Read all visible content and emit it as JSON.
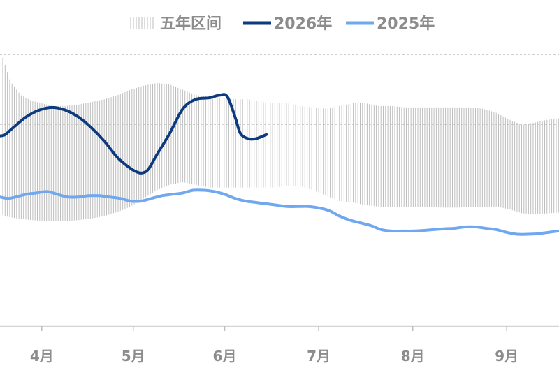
{
  "chart_data": {
    "type": "line",
    "legend_position": "top",
    "legend": [
      {
        "label": "五年区间",
        "kind": "band",
        "color": "#b8b8b8"
      },
      {
        "label": "2026年",
        "kind": "line",
        "color": "#0b3a7e"
      },
      {
        "label": "2025年",
        "kind": "line",
        "color": "#6fa8f0"
      }
    ],
    "x_axis": {
      "ticks": [
        "4月",
        "5月",
        "6月",
        "7月",
        "8月",
        "9月"
      ],
      "tick_day": [
        26,
        61,
        96,
        132,
        168,
        204
      ],
      "range_day": [
        10,
        224
      ]
    },
    "y_axis": {
      "range": [
        0,
        100
      ],
      "gridlines": [
        0,
        35,
        100
      ],
      "visible_labels": false
    },
    "band": {
      "name": "五年区间",
      "x": [
        10,
        11,
        12,
        14,
        18,
        22,
        26,
        30,
        35,
        40,
        45,
        50,
        55,
        60,
        65,
        70,
        75,
        80,
        85,
        90,
        95,
        100,
        105,
        110,
        115,
        120,
        125,
        130,
        135,
        140,
        145,
        150,
        155,
        160,
        165,
        170,
        175,
        180,
        185,
        190,
        195,
        200,
        205,
        210,
        215,
        220,
        224
      ],
      "low": [
        42,
        41,
        40.5,
        40,
        39.5,
        39,
        38.8,
        38.6,
        38.6,
        39,
        39.6,
        40.5,
        42,
        44,
        47,
        50,
        52,
        53,
        52,
        51,
        51,
        51,
        51,
        51,
        51,
        51.5,
        51.5,
        50,
        48,
        46,
        45.5,
        44.5,
        44,
        43.8,
        43.8,
        43.8,
        43.8,
        43.6,
        43.6,
        43.8,
        43.9,
        44,
        43,
        41.5,
        41.2,
        41.5,
        41.8
      ],
      "high": [
        100,
        99,
        96,
        90,
        85,
        83,
        82,
        81,
        81,
        81.5,
        82.5,
        83.5,
        85,
        87,
        88.5,
        89.5,
        89,
        87,
        85,
        84.5,
        84,
        83.5,
        83.5,
        82.5,
        82,
        82,
        81,
        80.5,
        80,
        81,
        82,
        82,
        81,
        81,
        80.5,
        80.5,
        80.5,
        80.5,
        80.5,
        80.5,
        80,
        78.5,
        76,
        74,
        75,
        76,
        76.5
      ]
    },
    "series": [
      {
        "name": "2026年",
        "x": [
          10,
          12,
          15,
          20,
          25,
          30,
          35,
          40,
          45,
          50,
          55,
          60,
          63,
          65,
          67,
          70,
          75,
          80,
          85,
          90,
          94,
          97,
          100,
          102,
          105,
          108,
          112
        ],
        "y": [
          70,
          70.5,
          73,
          77,
          79.5,
          80.5,
          79.5,
          77,
          73,
          68,
          62,
          58,
          56.5,
          56.5,
          58,
          63,
          71,
          80,
          83.5,
          84,
          85,
          84.5,
          77,
          71,
          69,
          69,
          70.5
        ]
      },
      {
        "name": "2025年",
        "x": [
          10,
          13,
          16,
          20,
          24,
          28,
          32,
          36,
          40,
          44,
          48,
          52,
          56,
          60,
          64,
          68,
          72,
          76,
          80,
          84,
          88,
          92,
          96,
          100,
          104,
          108,
          112,
          116,
          120,
          124,
          128,
          132,
          136,
          140,
          144,
          148,
          152,
          156,
          160,
          164,
          168,
          172,
          176,
          180,
          184,
          188,
          192,
          196,
          200,
          204,
          208,
          212,
          216,
          220,
          224
        ],
        "y": [
          47.5,
          47,
          47.5,
          48.5,
          49,
          49.5,
          48.5,
          47.5,
          47.5,
          48,
          48,
          47.5,
          47,
          46,
          46,
          47,
          48,
          48.5,
          49,
          50,
          50,
          49.5,
          48.5,
          47,
          46,
          45.5,
          45,
          44.5,
          44,
          44,
          44,
          43.5,
          42.5,
          40.5,
          39,
          38,
          37,
          35.5,
          35,
          35,
          35,
          35.2,
          35.5,
          35.8,
          36,
          36.5,
          36.5,
          36,
          35.5,
          34.5,
          33.8,
          33.8,
          34,
          34.5,
          35
        ]
      }
    ]
  }
}
